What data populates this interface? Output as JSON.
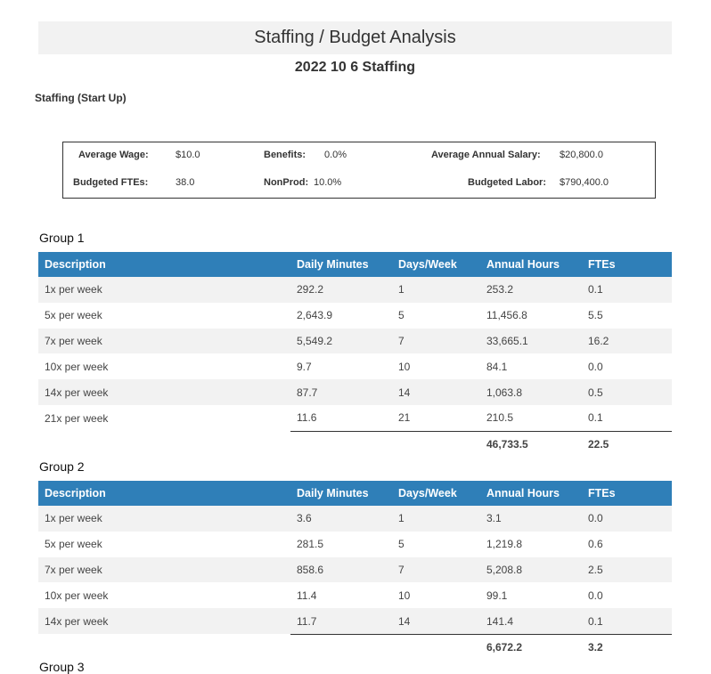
{
  "header": {
    "title": "Staffing / Budget Analysis",
    "subtitle": "2022 10 6 Staffing",
    "section": "Staffing (Start Up)"
  },
  "summary": {
    "average_wage": {
      "label": "Average Wage:",
      "value": "$10.0"
    },
    "benefits": {
      "label": "Benefits:",
      "value": "0.0%"
    },
    "average_annual_salary": {
      "label": "Average Annual Salary:",
      "value": "$20,800.0"
    },
    "budgeted_ftes": {
      "label": "Budgeted FTEs:",
      "value": "38.0"
    },
    "nonprod": {
      "label": "NonProd:",
      "value": "10.0%"
    },
    "budgeted_labor": {
      "label": "Budgeted Labor:",
      "value": "$790,400.0"
    }
  },
  "columns": [
    "Description",
    "Daily Minutes",
    "Days/Week",
    "Annual Hours",
    "FTEs"
  ],
  "groups": [
    {
      "title": "Group 1",
      "rows": [
        [
          "1x per week",
          "292.2",
          "1",
          "253.2",
          "0.1"
        ],
        [
          "5x per week",
          "2,643.9",
          "5",
          "11,456.8",
          "5.5"
        ],
        [
          "7x per week",
          "5,549.2",
          "7",
          "33,665.1",
          "16.2"
        ],
        [
          "10x per week",
          "9.7",
          "10",
          "84.1",
          "0.0"
        ],
        [
          "14x per week",
          "87.7",
          "14",
          "1,063.8",
          "0.5"
        ],
        [
          "21x per week",
          "11.6",
          "21",
          "210.5",
          "0.1"
        ]
      ],
      "total_hours": "46,733.5",
      "total_ftes": "22.5"
    },
    {
      "title": "Group 2",
      "rows": [
        [
          "1x per week",
          "3.6",
          "1",
          "3.1",
          "0.0"
        ],
        [
          "5x per week",
          "281.5",
          "5",
          "1,219.8",
          "0.6"
        ],
        [
          "7x per week",
          "858.6",
          "7",
          "5,208.8",
          "2.5"
        ],
        [
          "10x per week",
          "11.4",
          "10",
          "99.1",
          "0.0"
        ],
        [
          "14x per week",
          "11.7",
          "14",
          "141.4",
          "0.1"
        ]
      ],
      "total_hours": "6,672.2",
      "total_ftes": "3.2"
    },
    {
      "title": "Group 3"
    }
  ]
}
